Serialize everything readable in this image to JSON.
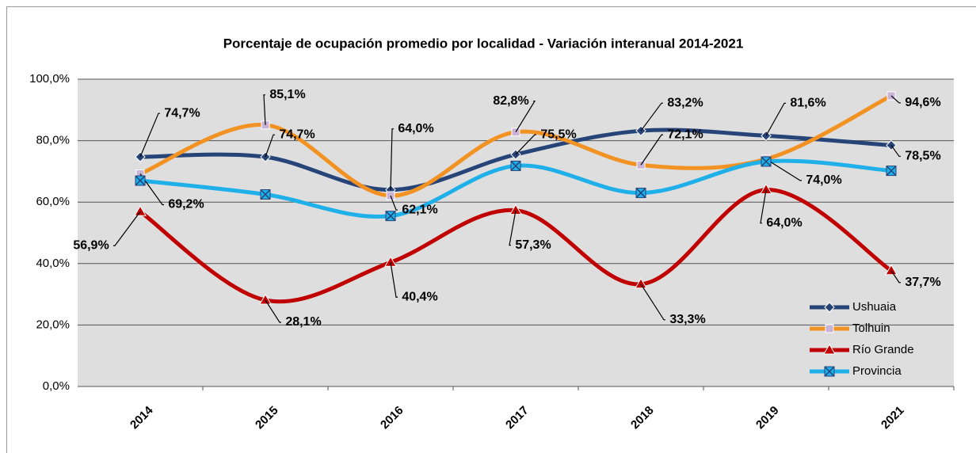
{
  "chart_data": {
    "type": "line",
    "title": "Porcentaje de ocupación promedio por localidad  - Variación interanual 2014-2021",
    "categories": [
      "2014",
      "2015",
      "2016",
      "2017",
      "2018",
      "2019",
      "2021"
    ],
    "series": [
      {
        "name": "Ushuaia",
        "color": "#264478",
        "marker": "diamond",
        "values": [
          74.7,
          74.7,
          64.0,
          75.5,
          83.2,
          81.6,
          78.5
        ],
        "value_labels": [
          "74,7%",
          "74,7%",
          "64,0%",
          "75,5%",
          "83,2%",
          "81,6%",
          "78,5%"
        ]
      },
      {
        "name": "Tolhuin",
        "color": "#f29222",
        "marker": "square",
        "values": [
          69.2,
          85.1,
          62.1,
          82.8,
          72.1,
          74.0,
          94.6
        ],
        "value_labels": [
          "69,2%",
          "85,1%",
          "62,1%",
          "82,8%",
          "72,1%",
          "74,0%",
          "94,6%"
        ]
      },
      {
        "name": "Río Grande",
        "color": "#c00000",
        "marker": "triangle",
        "values": [
          56.9,
          28.1,
          40.4,
          57.3,
          33.3,
          64.0,
          37.7
        ],
        "value_labels": [
          "56,9%",
          "28,1%",
          "40,4%",
          "57,3%",
          "33,3%",
          "64,0%",
          "37,7%"
        ]
      },
      {
        "name": "Provincia",
        "color": "#1fb0ea",
        "marker": "xsquare",
        "values": [
          67.0,
          62.5,
          55.5,
          71.8,
          63.0,
          73.2,
          70.2
        ]
      }
    ],
    "ylim": [
      0,
      100
    ],
    "yticks": [
      {
        "value": 0,
        "label": "0,0%"
      },
      {
        "value": 20,
        "label": "20,0%"
      },
      {
        "value": 40,
        "label": "40,0%"
      },
      {
        "value": 60,
        "label": "60,0%"
      },
      {
        "value": 80,
        "label": "80,0%"
      },
      {
        "value": 100,
        "label": "100,0%"
      }
    ],
    "grid": true,
    "legend": "lower right",
    "smooth": true
  }
}
